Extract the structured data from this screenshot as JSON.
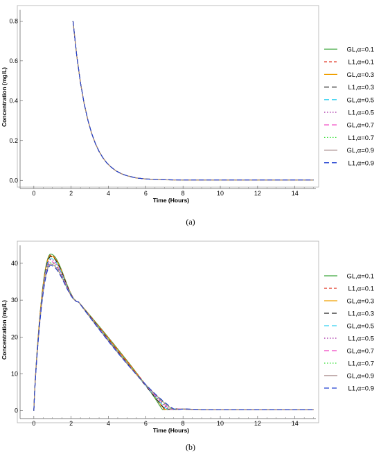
{
  "chart_data": [
    {
      "type": "line",
      "caption": "(a)",
      "xlabel": "Time (Hours)",
      "ylabel": "Concentration (mg/L)",
      "xlim": [
        -0.7,
        15.2
      ],
      "ylim": [
        -0.02,
        0.85
      ],
      "xticks": [
        "0",
        "2",
        "4",
        "6",
        "8",
        "10",
        "12",
        "14"
      ],
      "yticks": [
        "0.0",
        "0.2",
        "0.4",
        "0.6",
        "0.8"
      ],
      "legend_position": "right",
      "series": [
        {
          "name": "GL,α=0.1",
          "color": "#3fa63f",
          "dash": "solid"
        },
        {
          "name": "L1,α=0.1",
          "color": "#e0301e",
          "dash": "dashed"
        },
        {
          "name": "GL,α=0.3",
          "color": "#f0a000",
          "dash": "solid"
        },
        {
          "name": "L1,α=0.3",
          "color": "#202020",
          "dash": "longdash"
        },
        {
          "name": "GL,α=0.5",
          "color": "#30d0f0",
          "dash": "longdash"
        },
        {
          "name": "L1,α=0.5",
          "color": "#a020a0",
          "dash": "dotted"
        },
        {
          "name": "GL,α=0.7",
          "color": "#f040c0",
          "dash": "longdash"
        },
        {
          "name": "L1,α=0.7",
          "color": "#30e030",
          "dash": "dotted"
        },
        {
          "name": "GL,α=0.9",
          "color": "#a08080",
          "dash": "solid"
        },
        {
          "name": "L1,α=0.9",
          "color": "#1f3fd0",
          "dash": "longdash"
        }
      ],
      "curve": {
        "x": [
          2.1,
          2.3,
          2.5,
          2.7,
          2.9,
          3.1,
          3.3,
          3.5,
          3.7,
          3.9,
          4.1,
          4.4,
          4.7,
          5.0,
          5.5,
          6.0,
          7.0,
          8.0,
          10.0,
          12.0,
          15.0
        ],
        "y": [
          0.8,
          0.627,
          0.491,
          0.385,
          0.302,
          0.236,
          0.185,
          0.145,
          0.114,
          0.089,
          0.07,
          0.048,
          0.033,
          0.023,
          0.012,
          0.007,
          0.003,
          0.002,
          0.002,
          0.002,
          0.002
        ]
      }
    },
    {
      "type": "line",
      "caption": "(b)",
      "xlabel": "Time (Hours)",
      "ylabel": "Concentration (mg/L)",
      "xlim": [
        -0.7,
        15.2
      ],
      "ylim": [
        -1.0,
        44.5
      ],
      "xticks": [
        "0",
        "2",
        "4",
        "6",
        "8",
        "10",
        "12",
        "14"
      ],
      "yticks": [
        "0",
        "10",
        "20",
        "30",
        "40"
      ],
      "legend_position": "right",
      "series": [
        {
          "name": "GL,α=0.1",
          "color": "#3fa63f",
          "dash": "solid",
          "peak": 42.5,
          "t_end": 6.9
        },
        {
          "name": "L1,α=0.1",
          "color": "#e0301e",
          "dash": "dashed",
          "peak": 42.2,
          "t_end": 7.0
        },
        {
          "name": "GL,α=0.3",
          "color": "#f0a000",
          "dash": "solid",
          "peak": 42.0,
          "t_end": 7.05
        },
        {
          "name": "L1,α=0.3",
          "color": "#202020",
          "dash": "longdash",
          "peak": 41.8,
          "t_end": 7.1
        },
        {
          "name": "GL,α=0.5",
          "color": "#30d0f0",
          "dash": "longdash",
          "peak": 41.3,
          "t_end": 7.2
        },
        {
          "name": "L1,α=0.5",
          "color": "#a020a0",
          "dash": "dotted",
          "peak": 41.0,
          "t_end": 7.3
        },
        {
          "name": "GL,α=0.7",
          "color": "#f040c0",
          "dash": "longdash",
          "peak": 40.5,
          "t_end": 7.4
        },
        {
          "name": "L1,α=0.7",
          "color": "#30e030",
          "dash": "dotted",
          "peak": 40.2,
          "t_end": 7.5
        },
        {
          "name": "GL,α=0.9",
          "color": "#a08080",
          "dash": "solid",
          "peak": 39.8,
          "t_end": 7.6
        },
        {
          "name": "L1,α=0.9",
          "color": "#1f3fd0",
          "dash": "longdash",
          "peak": 39.4,
          "t_end": 7.7
        }
      ],
      "t_peak": 0.9,
      "cross_point": [
        2.4,
        29.5
      ],
      "tail_value": 0.3
    }
  ]
}
